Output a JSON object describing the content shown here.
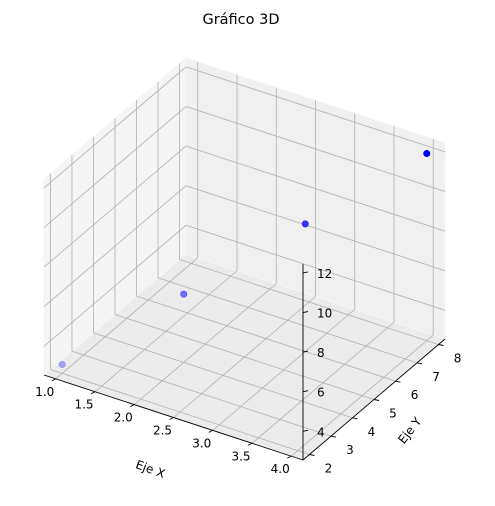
{
  "chart_data": {
    "type": "scatter",
    "title": "Gráfico 3D",
    "xlabel": "Eje X",
    "ylabel": "Eje Y",
    "zlabel": "",
    "x": [
      1,
      2,
      3,
      4
    ],
    "y": [
      2,
      4,
      6,
      8
    ],
    "z": [
      3,
      6,
      9,
      12
    ],
    "xlim": [
      0.85,
      4.15
    ],
    "ylim": [
      1.7,
      8.3
    ],
    "zlim": [
      2.55,
      12.45
    ],
    "xticks": [
      "1.0",
      "1.5",
      "2.0",
      "2.5",
      "3.0",
      "3.5",
      "4.0"
    ],
    "yticks": [
      "2",
      "3",
      "4",
      "5",
      "6",
      "7",
      "8"
    ],
    "zticks": [
      "4",
      "6",
      "8",
      "10",
      "12"
    ],
    "grid": true,
    "marker_color": "#0000ff"
  }
}
